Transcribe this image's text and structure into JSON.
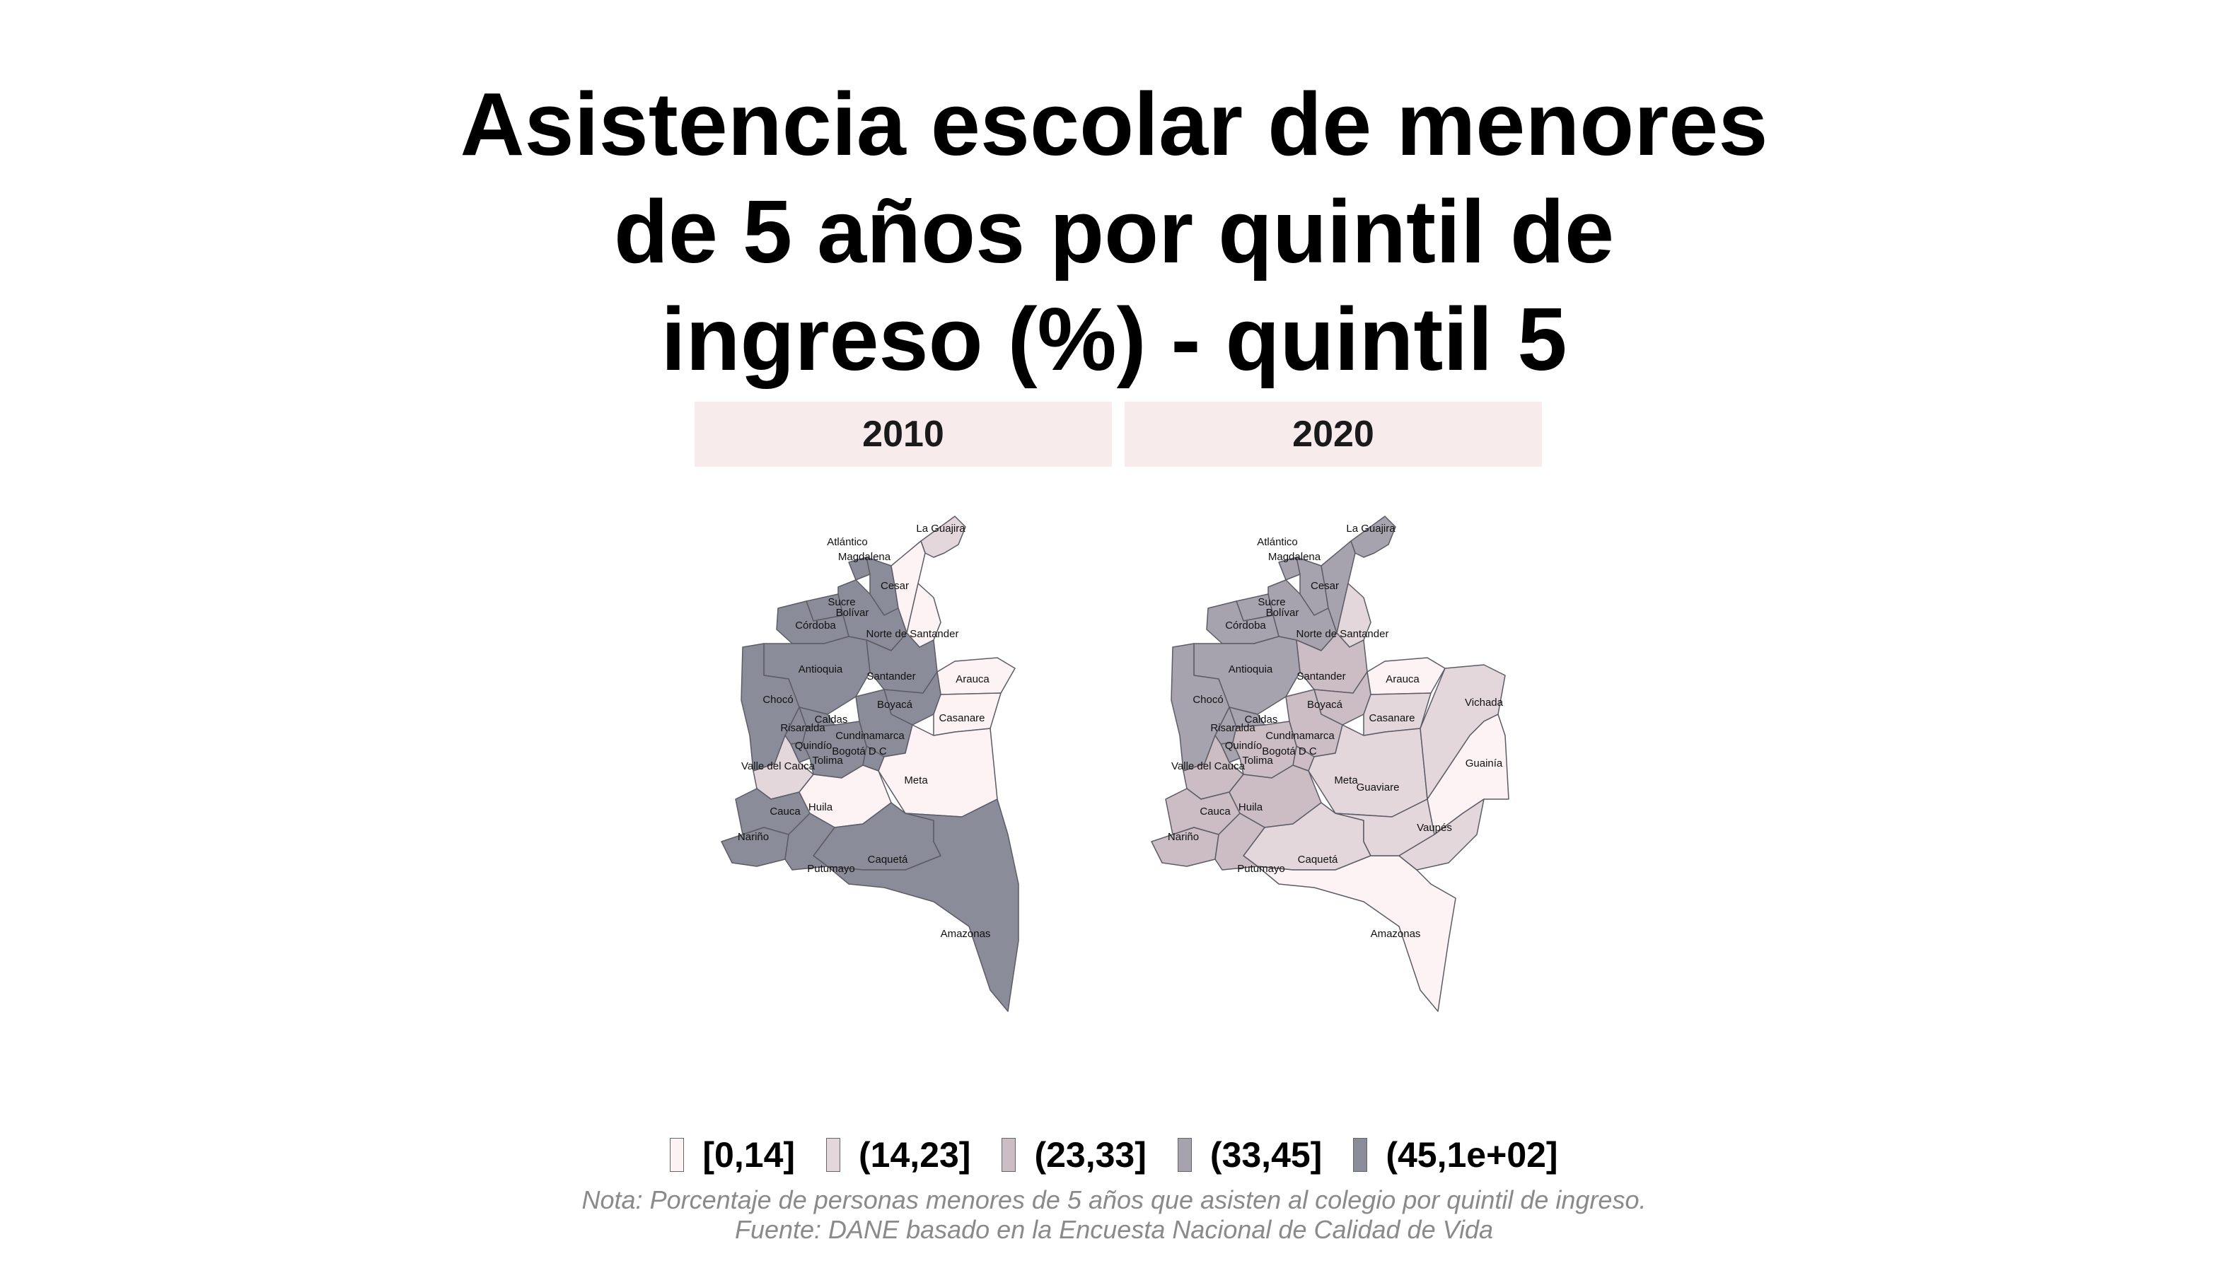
{
  "title": {
    "line1": "Asistencia escolar de menores",
    "line2": "de 5 años por quintil de",
    "line3": "ingreso (%) - quintil 5"
  },
  "panels": [
    "2010",
    "2020"
  ],
  "legend": {
    "items": [
      {
        "label": "[0,14]",
        "color": "#fdf3f4"
      },
      {
        "label": "(14,23]",
        "color": "#e3d7db"
      },
      {
        "label": "(23,33]",
        "color": "#cbbdc3"
      },
      {
        "label": "(33,45]",
        "color": "#a6a3ae"
      },
      {
        "label": "(45,1e+02]",
        "color": "#8a8c99"
      }
    ]
  },
  "notes": {
    "nota": "Nota: Porcentaje de personas menores de 5 años que asisten al colegio por quintil de ingreso.",
    "fuente": "Fuente: DANE basado en la Encuesta Nacional de Calidad de Vida"
  },
  "departments": [
    "La Guajira",
    "Atlántico",
    "Magdalena",
    "Cesar",
    "Sucre",
    "Bolívar",
    "Córdoba",
    "Norte de Santander",
    "Antioquia",
    "Santander",
    "Arauca",
    "Chocó",
    "Boyacá",
    "Casanare",
    "Caldas",
    "Risaralda",
    "Cundinamarca",
    "Quindío",
    "Bogotá D C",
    "Tolima",
    "Valle del Cauca",
    "Meta",
    "Cauca",
    "Huila",
    "Nariño",
    "Caquetá",
    "Putumayo",
    "Amazonas",
    "Vichada",
    "Guainía",
    "Guaviare",
    "Vaupés"
  ],
  "map_values": {
    "2010": {
      "La Guajira": "(14,23]",
      "Atlántico": "(45,1e+02]",
      "Magdalena": "(45,1e+02]",
      "Cesar": "[0,14]",
      "Sucre": "(45,1e+02]",
      "Bolívar": "(45,1e+02]",
      "Córdoba": "(45,1e+02]",
      "Norte de Santander": "[0,14]",
      "Antioquia": "(45,1e+02]",
      "Santander": "(45,1e+02]",
      "Arauca": "[0,14]",
      "Chocó": "(45,1e+02]",
      "Boyacá": "(45,1e+02]",
      "Casanare": "[0,14]",
      "Caldas": "(45,1e+02]",
      "Risaralda": "(45,1e+02]",
      "Cundinamarca": "(45,1e+02]",
      "Quindío": "(45,1e+02]",
      "Bogotá D C": "(45,1e+02]",
      "Tolima": "(45,1e+02]",
      "Valle del Cauca": "(14,23]",
      "Meta": "[0,14]",
      "Cauca": "(45,1e+02]",
      "Huila": "[0,14]",
      "Nariño": "(45,1e+02]",
      "Caquetá": "(45,1e+02]",
      "Putumayo": "(45,1e+02]",
      "Amazonas": "(45,1e+02]"
    },
    "2020": {
      "La Guajira": "(33,45]",
      "Atlántico": "(33,45]",
      "Magdalena": "(33,45]",
      "Cesar": "(33,45]",
      "Sucre": "(33,45]",
      "Bolívar": "(33,45]",
      "Córdoba": "(33,45]",
      "Norte de Santander": "(14,23]",
      "Antioquia": "(33,45]",
      "Santander": "(23,33]",
      "Arauca": "[0,14]",
      "Chocó": "(33,45]",
      "Boyacá": "(23,33]",
      "Casanare": "(14,23]",
      "Caldas": "(33,45]",
      "Risaralda": "(33,45]",
      "Cundinamarca": "(23,33]",
      "Quindío": "(33,45]",
      "Bogotá D C": "(23,33]",
      "Tolima": "(23,33]",
      "Valle del Cauca": "(23,33]",
      "Meta": "(14,23]",
      "Cauca": "(23,33]",
      "Huila": "(23,33]",
      "Nariño": "(23,33]",
      "Caquetá": "(14,23]",
      "Putumayo": "(23,33]",
      "Amazonas": "[0,14]",
      "Vichada": "(14,23]",
      "Guainía": "[0,14]",
      "Guaviare": "(14,23]",
      "Vaupés": "(14,23]"
    }
  }
}
